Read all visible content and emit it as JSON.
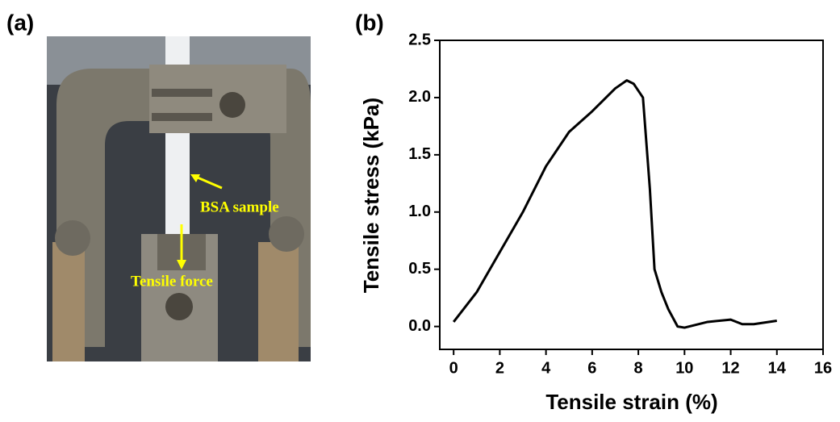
{
  "photo": {
    "label": "(a)",
    "annotations": [
      "BSA sample",
      "Tensile force"
    ]
  },
  "chart_data": {
    "type": "line",
    "panel_label": "(b)",
    "x_label": "Tensile strain (%)",
    "y_label": "Tensile stress (kPa)",
    "x": [
      0,
      1,
      2,
      3,
      4,
      5,
      6,
      7,
      7.5,
      7.8,
      8.2,
      8.5,
      8.7,
      9,
      9.3,
      9.7,
      10,
      11,
      12,
      12.5,
      13,
      14
    ],
    "series": [
      {
        "color": "#000000",
        "values": [
          0.04,
          0.3,
          0.65,
          1.0,
          1.4,
          1.7,
          1.88,
          2.08,
          2.15,
          2.12,
          2.0,
          1.2,
          0.5,
          0.3,
          0.15,
          0.0,
          -0.01,
          0.04,
          0.06,
          0.02,
          0.02,
          0.05
        ]
      }
    ],
    "xlim": [
      -0.6,
      16
    ],
    "ylim": [
      -0.2,
      2.5
    ],
    "xticks": [
      0,
      2,
      4,
      6,
      8,
      10,
      12,
      14,
      16
    ],
    "yticks": [
      {
        "value": 0,
        "label": "0.0"
      },
      0.5,
      {
        "value": 1,
        "label": "1.0"
      },
      1.5,
      {
        "value": 2,
        "label": "2.0"
      },
      2.5
    ]
  }
}
